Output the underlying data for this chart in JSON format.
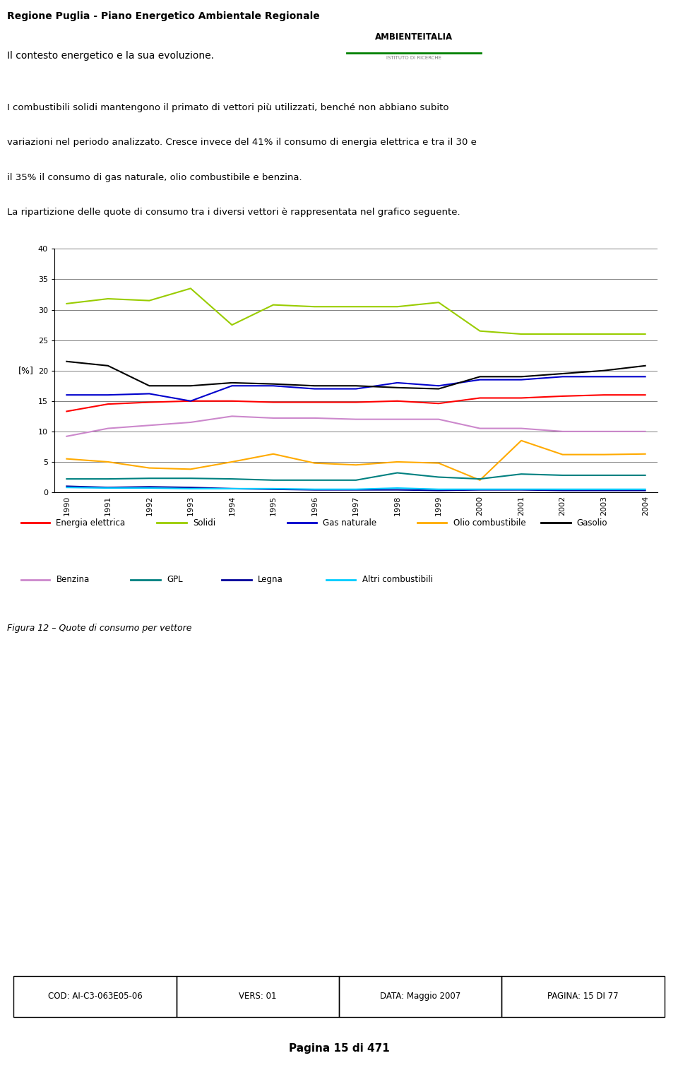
{
  "years": [
    1990,
    1991,
    1992,
    1993,
    1994,
    1995,
    1996,
    1997,
    1998,
    1999,
    2000,
    2001,
    2002,
    2003,
    2004
  ],
  "series": {
    "Energia elettrica": {
      "color": "#ff0000",
      "values": [
        13.3,
        14.5,
        14.8,
        15.0,
        15.0,
        14.8,
        14.8,
        14.8,
        15.0,
        14.6,
        15.5,
        15.5,
        15.8,
        16.0,
        16.0
      ]
    },
    "Solidi": {
      "color": "#99cc00",
      "values": [
        31.0,
        31.8,
        31.5,
        33.5,
        27.5,
        30.8,
        30.5,
        30.5,
        30.5,
        31.2,
        26.5,
        26.0,
        26.0,
        26.0,
        26.0
      ]
    },
    "Gas naturale": {
      "color": "#0000cc",
      "values": [
        16.0,
        16.0,
        16.2,
        15.0,
        17.5,
        17.5,
        17.0,
        17.0,
        18.0,
        17.5,
        18.5,
        18.5,
        19.0,
        19.0,
        19.0
      ]
    },
    "Olio combustibile": {
      "color": "#ffaa00",
      "values": [
        5.5,
        5.0,
        4.0,
        3.8,
        5.0,
        6.3,
        4.8,
        4.5,
        5.0,
        4.8,
        2.0,
        8.5,
        6.2,
        6.2,
        6.3
      ]
    },
    "Gasolio": {
      "color": "#000000",
      "values": [
        21.5,
        20.8,
        17.5,
        17.5,
        18.0,
        17.8,
        17.5,
        17.5,
        17.2,
        17.0,
        19.0,
        19.0,
        19.5,
        20.0,
        20.8
      ]
    },
    "Benzina": {
      "color": "#cc88cc",
      "values": [
        9.2,
        10.5,
        11.0,
        11.5,
        12.5,
        12.2,
        12.2,
        12.0,
        12.0,
        12.0,
        10.5,
        10.5,
        10.0,
        10.0,
        10.0
      ]
    },
    "GPL": {
      "color": "#008080",
      "values": [
        2.2,
        2.2,
        2.3,
        2.3,
        2.2,
        2.0,
        2.0,
        2.0,
        3.2,
        2.5,
        2.2,
        3.0,
        2.8,
        2.8,
        2.8
      ]
    },
    "Legna": {
      "color": "#000099",
      "values": [
        1.0,
        0.8,
        0.9,
        0.8,
        0.6,
        0.5,
        0.4,
        0.4,
        0.4,
        0.3,
        0.4,
        0.4,
        0.3,
        0.3,
        0.3
      ]
    },
    "Altri combustibili": {
      "color": "#00ccff",
      "values": [
        0.8,
        0.7,
        0.7,
        0.6,
        0.6,
        0.6,
        0.5,
        0.5,
        0.7,
        0.5,
        0.5,
        0.5,
        0.5,
        0.5,
        0.5
      ]
    }
  },
  "ylabel": "[%]",
  "ylim": [
    0,
    40
  ],
  "yticks": [
    0,
    5,
    10,
    15,
    20,
    25,
    30,
    35,
    40
  ],
  "header_line1": "Regione Puglia - Piano Energetico Ambientale Regionale",
  "header_line2": "Il contesto energetico e la sua evoluzione.",
  "body_text_lines": [
    "I combustibili solidi mantengono il primato di vettori più utilizzati, benché non abbiano subito",
    "variazioni nel periodo analizzato. Cresce invece del 41% il consumo di energia elettrica e tra il 30 e",
    "il 35% il consumo di gas naturale, olio combustibile e benzina.",
    "La ripartizione delle quote di consumo tra i diversi vettori è rappresentata nel grafico seguente."
  ],
  "figure_caption": "Figura 12 – Quote di consumo per vettore",
  "footer_cod": "COD: AI-C3-063E05-06",
  "footer_vers": "VERS: 01",
  "footer_data": "DATA: Maggio 2007",
  "footer_pagina": "PAGINA: 15 DI 77",
  "page_label": "Pagina 15 di 471",
  "legend_row1": [
    [
      "Energia elettrica",
      "#ff0000"
    ],
    [
      "Solidi",
      "#99cc00"
    ],
    [
      "Gas naturale",
      "#0000cc"
    ],
    [
      "Olio combustibile",
      "#ffaa00"
    ],
    [
      "Gasolio",
      "#000000"
    ]
  ],
  "legend_row2": [
    [
      "Benzina",
      "#cc88cc"
    ],
    [
      "GPL",
      "#008080"
    ],
    [
      "Legna",
      "#000099"
    ],
    [
      "Altri combustibili",
      "#00ccff"
    ]
  ]
}
